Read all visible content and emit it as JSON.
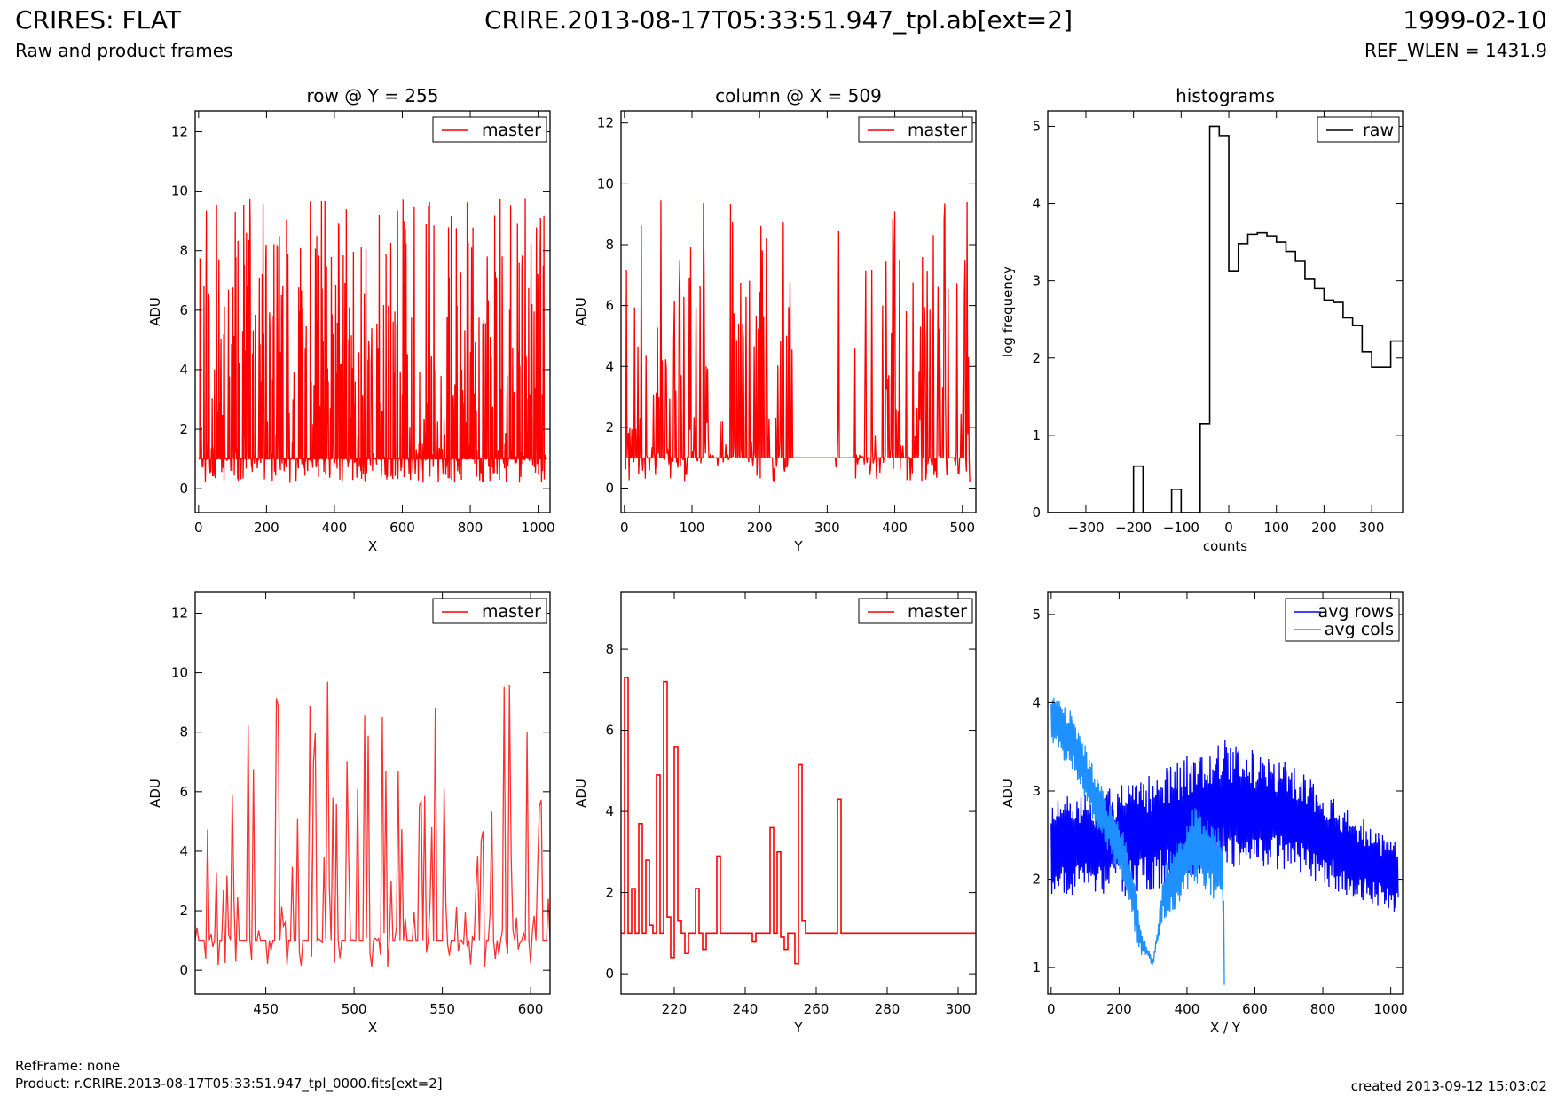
{
  "header": {
    "title_left": "CRIRES: FLAT",
    "subtitle_left": "Raw and product frames",
    "title_center": "CRIRE.2013-08-17T05:33:51.947_tpl.ab[ext=2]",
    "title_right": "1999-02-10",
    "subtitle_right": "REF_WLEN = 1431.9"
  },
  "footer": {
    "refframe": "RefFrame: none",
    "product": "Product: r.CRIRE.2013-08-17T05:33:51.947_tpl_0000.fits[ext=2]",
    "created": "created 2013-09-12 15:03:02"
  },
  "chart_data": [
    {
      "id": "p1",
      "type": "line",
      "title": "row @ Y = 255",
      "xlabel": "X",
      "ylabel": "ADU",
      "xlim": [
        -10,
        1035
      ],
      "ylim": [
        -0.8,
        12.7
      ],
      "xticks": [
        0,
        200,
        400,
        600,
        800,
        1000
      ],
      "yticks": [
        0,
        2,
        4,
        6,
        8,
        10,
        12
      ],
      "legend": {
        "position": "top-right",
        "entries": [
          {
            "label": "master",
            "color": "#ff0000"
          }
        ]
      },
      "series": [
        {
          "name": "master",
          "color": "#ff0000",
          "style": "noise",
          "noise": {
            "x_start": 0,
            "x_end": 1023,
            "step": 1,
            "base": 1,
            "low": 0.2,
            "high": 9.8,
            "seed": 11
          }
        }
      ]
    },
    {
      "id": "p2",
      "type": "line",
      "title": "column @ X = 509",
      "xlabel": "Y",
      "ylabel": "ADU",
      "xlim": [
        -5,
        520
      ],
      "ylim": [
        -0.8,
        12.4
      ],
      "xticks": [
        0,
        100,
        200,
        300,
        400,
        500
      ],
      "yticks": [
        0,
        2,
        4,
        6,
        8,
        10,
        12
      ],
      "legend": {
        "position": "top-right",
        "entries": [
          {
            "label": "master",
            "color": "#ff0000"
          }
        ]
      },
      "series": [
        {
          "name": "master",
          "color": "#ff0000",
          "style": "noise",
          "noise": {
            "x_start": 0,
            "x_end": 511,
            "step": 1,
            "base": 1,
            "low": 0.2,
            "high": 9.5,
            "seed": 23,
            "flat_ranges": [
              [
                250,
                312
              ],
              [
                318,
                338
              ]
            ]
          }
        }
      ]
    },
    {
      "id": "p3",
      "type": "histogram",
      "title": "histograms",
      "xlabel": "counts",
      "ylabel": "log frequency",
      "xlim": [
        -380,
        365
      ],
      "ylim": [
        0,
        5.2
      ],
      "xticks": [
        -300,
        -200,
        -100,
        0,
        100,
        200,
        300
      ],
      "yticks": [
        0,
        1,
        2,
        3,
        4,
        5
      ],
      "legend": {
        "position": "top-right",
        "entries": [
          {
            "label": "raw",
            "color": "#000000"
          }
        ]
      },
      "series": [
        {
          "name": "raw",
          "color": "#000000",
          "style": "steps",
          "x": [
            -380,
            -200,
            -180,
            -120,
            -100,
            -60,
            -40,
            -20,
            0,
            20,
            40,
            60,
            80,
            100,
            120,
            140,
            160,
            180,
            200,
            220,
            240,
            260,
            280,
            300,
            320,
            340,
            365
          ],
          "y": [
            0,
            0.6,
            0,
            0.3,
            0,
            1.15,
            5.0,
            4.88,
            3.12,
            3.48,
            3.6,
            3.62,
            3.58,
            3.5,
            3.38,
            3.26,
            3.02,
            2.9,
            2.75,
            2.72,
            2.52,
            2.42,
            2.08,
            1.88,
            1.88,
            2.22
          ]
        }
      ]
    },
    {
      "id": "p4",
      "type": "line",
      "title": "",
      "xlabel": "X",
      "ylabel": "ADU",
      "xlim": [
        410,
        611
      ],
      "ylim": [
        -0.8,
        12.7
      ],
      "xticks": [
        450,
        500,
        550,
        600
      ],
      "yticks": [
        0,
        2,
        4,
        6,
        8,
        10,
        12
      ],
      "legend": {
        "position": "top-right",
        "entries": [
          {
            "label": "master",
            "color": "#ff0000"
          }
        ]
      },
      "series": [
        {
          "name": "master",
          "color": "#ff3030",
          "style": "noise",
          "noise": {
            "x_start": 410,
            "x_end": 611,
            "step": 1,
            "base": 1,
            "low": 0.1,
            "high": 9.8,
            "seed": 37
          }
        }
      ]
    },
    {
      "id": "p5",
      "type": "line",
      "title": "",
      "xlabel": "Y",
      "ylabel": "ADU",
      "xlim": [
        205,
        305
      ],
      "ylim": [
        -0.5,
        9.4
      ],
      "xticks": [
        220,
        240,
        260,
        280,
        300
      ],
      "yticks": [
        0,
        2,
        4,
        6,
        8
      ],
      "legend": {
        "position": "top-right",
        "entries": [
          {
            "label": "master",
            "color": "#ff0000"
          }
        ]
      },
      "series": [
        {
          "name": "master",
          "color": "#ff0000",
          "style": "steps",
          "x": [
            205,
            206,
            207,
            208,
            209,
            210,
            211,
            212,
            213,
            214,
            215,
            216,
            217,
            218,
            219,
            220,
            221,
            222,
            223,
            224,
            225,
            226,
            227,
            228,
            229,
            230,
            231,
            232,
            233,
            234,
            235,
            236,
            237,
            238,
            239,
            240,
            241,
            242,
            243,
            244,
            245,
            246,
            247,
            248,
            249,
            250,
            251,
            252,
            253,
            254,
            255,
            256,
            257,
            258,
            266,
            267,
            305
          ],
          "y": [
            1.0,
            7.3,
            1.0,
            2.1,
            1.0,
            3.7,
            1.0,
            2.8,
            1.2,
            1.0,
            4.9,
            1.0,
            7.2,
            1.4,
            0.4,
            5.6,
            1.3,
            1.0,
            0.5,
            1.0,
            1.0,
            2.1,
            1.0,
            0.6,
            1.0,
            1.0,
            1.0,
            2.9,
            1.0,
            1.0,
            1.0,
            1.0,
            1.0,
            1.0,
            1.0,
            1.0,
            1.0,
            0.8,
            1.0,
            1.0,
            1.0,
            1.0,
            3.6,
            1.0,
            3.0,
            0.9,
            0.6,
            1.0,
            1.0,
            0.25,
            5.15,
            1.3,
            1.0,
            1.0,
            4.3,
            1.0,
            1.0
          ]
        }
      ]
    },
    {
      "id": "p6",
      "type": "line",
      "title": "",
      "xlabel": "X / Y",
      "ylabel": "ADU",
      "xlim": [
        -10,
        1035
      ],
      "ylim": [
        0.7,
        5.25
      ],
      "xticks": [
        0,
        200,
        400,
        600,
        800,
        1000
      ],
      "yticks": [
        1,
        2,
        3,
        4,
        5
      ],
      "legend": {
        "position": "top-right",
        "entries": [
          {
            "label": "avg rows",
            "color": "#0000ff"
          },
          {
            "label": "avg cols",
            "color": "#1e90ff"
          }
        ]
      },
      "series": [
        {
          "name": "avg rows",
          "color": "#0000ff",
          "style": "band",
          "band": {
            "x_start": 0,
            "x_end": 1023,
            "step": 2,
            "seed": 51,
            "center": [
              [
                0,
                2.35
              ],
              [
                250,
                2.45
              ],
              [
                500,
                2.85
              ],
              [
                700,
                2.7
              ],
              [
                900,
                2.25
              ],
              [
                1023,
                2.0
              ]
            ],
            "spread": [
              [
                0,
                0.55
              ],
              [
                500,
                0.75
              ],
              [
                1023,
                0.4
              ]
            ]
          }
        },
        {
          "name": "avg cols",
          "color": "#1e90ff",
          "style": "band",
          "band": {
            "x_start": 0,
            "x_end": 511,
            "step": 2,
            "seed": 77,
            "center": [
              [
                0,
                3.8
              ],
              [
                60,
                3.6
              ],
              [
                130,
                2.9
              ],
              [
                220,
                2.2
              ],
              [
                265,
                1.3
              ],
              [
                300,
                1.05
              ],
              [
                330,
                1.8
              ],
              [
                420,
                2.4
              ],
              [
                480,
                2.2
              ],
              [
                505,
                2.1
              ],
              [
                511,
                1.0
              ]
            ],
            "spread": [
              [
                0,
                0.35
              ],
              [
                250,
                0.3
              ],
              [
                280,
                0.05
              ],
              [
                310,
                0.05
              ],
              [
                340,
                0.4
              ],
              [
                511,
                0.45
              ]
            ]
          }
        }
      ]
    }
  ]
}
